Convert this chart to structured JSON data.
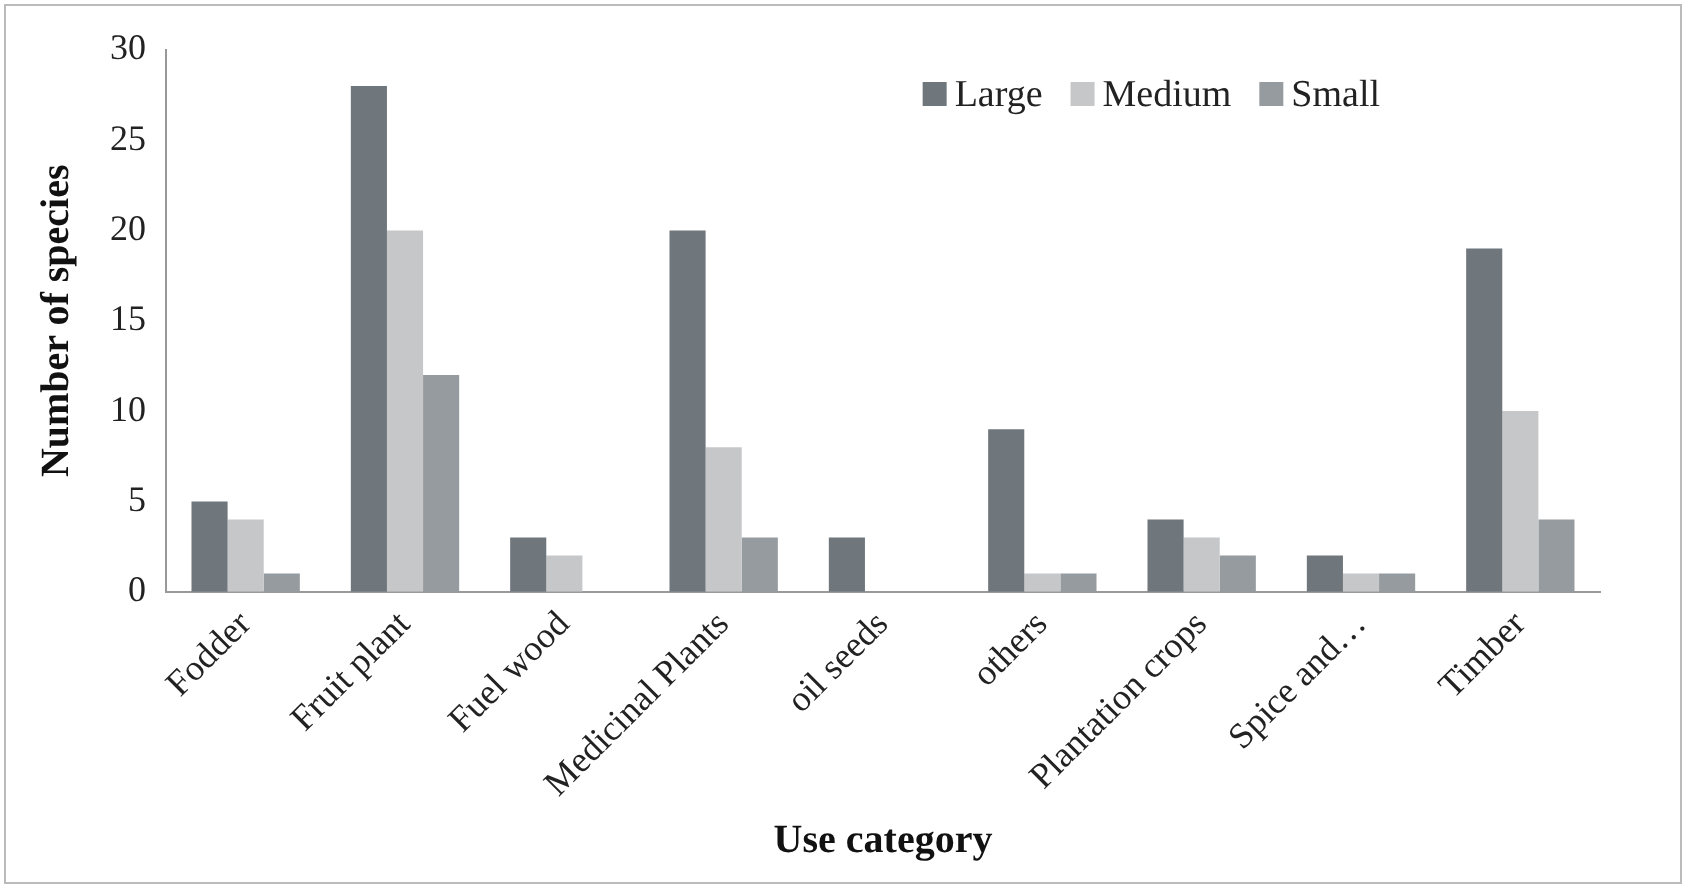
{
  "chart_data": {
    "type": "bar",
    "xlabel": "Use category",
    "ylabel": "Number of species",
    "categories": [
      "Fodder",
      "Fruit plant",
      "Fuel wood",
      "Medicinal Plants",
      "oil seeds",
      "others",
      "Plantation crops",
      "Spice and…",
      "Timber"
    ],
    "series": [
      {
        "name": "Large",
        "color": "#6f767c",
        "values": [
          5,
          28,
          3,
          20,
          3,
          9,
          4,
          2,
          19
        ]
      },
      {
        "name": "Medium",
        "color": "#c6c7c9",
        "values": [
          4,
          20,
          2,
          8,
          0,
          1,
          3,
          1,
          10
        ]
      },
      {
        "name": "Small",
        "color": "#959b9f",
        "values": [
          1,
          12,
          0,
          3,
          0,
          1,
          2,
          1,
          4
        ]
      }
    ],
    "ylim": [
      0,
      30
    ],
    "yticks": [
      0,
      5,
      10,
      15,
      20,
      25,
      30
    ],
    "grid": false,
    "legend": "top right"
  }
}
